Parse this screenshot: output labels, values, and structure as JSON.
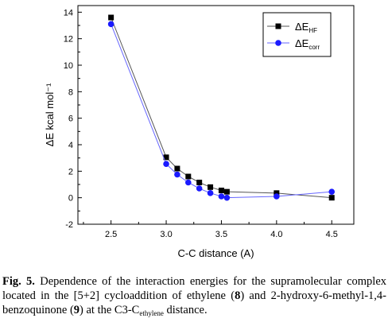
{
  "chart_data": {
    "type": "line",
    "xlabel": "C-C distance (A)",
    "ylabel": "ΔE kcal mol⁻¹",
    "xlim": [
      2.2,
      4.7
    ],
    "ylim": [
      -2,
      14.5
    ],
    "xticks": [
      2.5,
      3.0,
      3.5,
      4.0,
      4.5
    ],
    "xtick_labels": [
      "2.5",
      "3.0",
      "3.5",
      "4.0",
      "4.5"
    ],
    "yticks": [
      -2,
      0,
      2,
      4,
      6,
      8,
      10,
      12,
      14
    ],
    "ytick_labels": [
      "-2",
      "0",
      "2",
      "4",
      "6",
      "8",
      "10",
      "12",
      "14"
    ],
    "grid": false,
    "legend_position": "top-right",
    "series": [
      {
        "name": "ΔE",
        "name_sub": "HF",
        "marker": "square",
        "color": "#000000",
        "line_color": "#555555",
        "x": [
          2.5,
          3.0,
          3.1,
          3.2,
          3.3,
          3.4,
          3.5,
          3.55,
          4.0,
          4.5
        ],
        "y": [
          13.6,
          3.05,
          2.2,
          1.6,
          1.15,
          0.8,
          0.55,
          0.45,
          0.35,
          0.0
        ]
      },
      {
        "name": "ΔE",
        "name_sub": "corr",
        "marker": "circle",
        "color": "#1a1aff",
        "line_color": "#6666ff",
        "x": [
          2.5,
          3.0,
          3.1,
          3.2,
          3.3,
          3.4,
          3.5,
          3.55,
          4.0,
          4.5
        ],
        "y": [
          13.1,
          2.55,
          1.75,
          1.15,
          0.7,
          0.35,
          0.1,
          0.0,
          0.1,
          0.45
        ]
      }
    ]
  },
  "caption": {
    "label": "Fig. 5.",
    "text_1": " Dependence of the interaction energies for the supramolecular complex located in the [5+2] cycloaddition of ethylene (",
    "bold_8": "8",
    "text_2": ") and 2-hydroxy-6-methyl-1,4-benzoquinone (",
    "bold_9": "9",
    "text_3": ") at the C3-C",
    "subscript": "ethylene",
    "text_4": " distance."
  }
}
